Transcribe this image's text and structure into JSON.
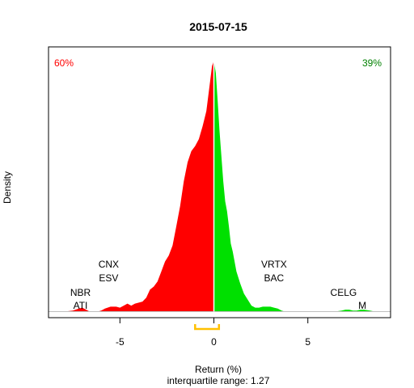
{
  "chart_data": {
    "type": "area",
    "title": "2015-07-15",
    "xlabel": "Return (%)",
    "sublabel": "interquartile range: 1.27",
    "ylabel": "Density",
    "xlim": [
      -8.8,
      9.4
    ],
    "ylim": [
      -0.006,
      0.264
    ],
    "x_ticks": [
      -5,
      0,
      5
    ],
    "x_tick_labels": [
      "-5",
      "0",
      "5"
    ],
    "left_share": "60%",
    "right_share": "39%",
    "colors": {
      "negative": "#ff0000",
      "positive": "#00e000",
      "left_share": "#ff0000",
      "right_share": "#008000",
      "iqr": "#ffc000",
      "divider": "#ffffff",
      "baseline": "#bebebe"
    },
    "iqr": [
      -1.0,
      0.27
    ],
    "series": [
      {
        "x": [
          -8.0,
          -7.5,
          -7.2,
          -7.0,
          -6.8,
          -6.6,
          -6.4,
          -6.2,
          -6.0,
          -5.8,
          -5.5,
          -5.2,
          -5.0,
          -4.8,
          -4.6,
          -4.4,
          -4.2,
          -4.0,
          -3.8,
          -3.6,
          -3.4,
          -3.2,
          -3.0,
          -2.8,
          -2.6,
          -2.4,
          -2.2,
          -2.0,
          -1.8,
          -1.6,
          -1.4,
          -1.2,
          -1.0,
          -0.8,
          -0.6,
          -0.4,
          -0.2,
          -0.1,
          0.0,
          0.1,
          0.2,
          0.3,
          0.4,
          0.5,
          0.6,
          0.7,
          0.8,
          0.9,
          1.0,
          1.2,
          1.4,
          1.6,
          1.8,
          2.0,
          2.2,
          2.4,
          2.6,
          2.8,
          3.0,
          3.2,
          3.4,
          3.6,
          3.8,
          4.0,
          4.4,
          4.8,
          5.2,
          5.6,
          6.0,
          6.4,
          6.8,
          7.0,
          7.2,
          7.4,
          7.6,
          7.8,
          8.0,
          8.3,
          8.6
        ],
        "y": [
          0.0,
          0.001,
          0.003,
          0.004,
          0.002,
          0.0,
          0.0,
          0.0,
          0.001,
          0.003,
          0.005,
          0.005,
          0.004,
          0.006,
          0.008,
          0.006,
          0.008,
          0.009,
          0.01,
          0.014,
          0.022,
          0.025,
          0.03,
          0.04,
          0.05,
          0.056,
          0.066,
          0.085,
          0.105,
          0.13,
          0.149,
          0.16,
          0.165,
          0.172,
          0.185,
          0.2,
          0.23,
          0.245,
          0.25,
          0.238,
          0.21,
          0.18,
          0.155,
          0.13,
          0.11,
          0.1,
          0.085,
          0.068,
          0.06,
          0.04,
          0.028,
          0.018,
          0.012,
          0.006,
          0.004,
          0.004,
          0.005,
          0.005,
          0.005,
          0.004,
          0.003,
          0.001,
          0.0,
          0.0,
          0.0,
          0.0,
          0.0,
          0.0,
          0.0,
          0.0,
          0.001,
          0.002,
          0.002,
          0.001,
          0.001,
          0.002,
          0.002,
          0.001,
          0.0
        ]
      }
    ],
    "annotations": [
      {
        "text": "NBR",
        "x": -7.1,
        "row": 2
      },
      {
        "text": "ATI",
        "x": -7.1,
        "row": 1
      },
      {
        "text": "CNX",
        "x": -5.6,
        "row": 4
      },
      {
        "text": "ESV",
        "x": -5.6,
        "row": 3
      },
      {
        "text": "VRTX",
        "x": 3.2,
        "row": 4
      },
      {
        "text": "BAC",
        "x": 3.2,
        "row": 3
      },
      {
        "text": "CELG",
        "x": 6.9,
        "row": 2
      },
      {
        "text": "M",
        "x": 7.9,
        "row": 1
      }
    ]
  }
}
